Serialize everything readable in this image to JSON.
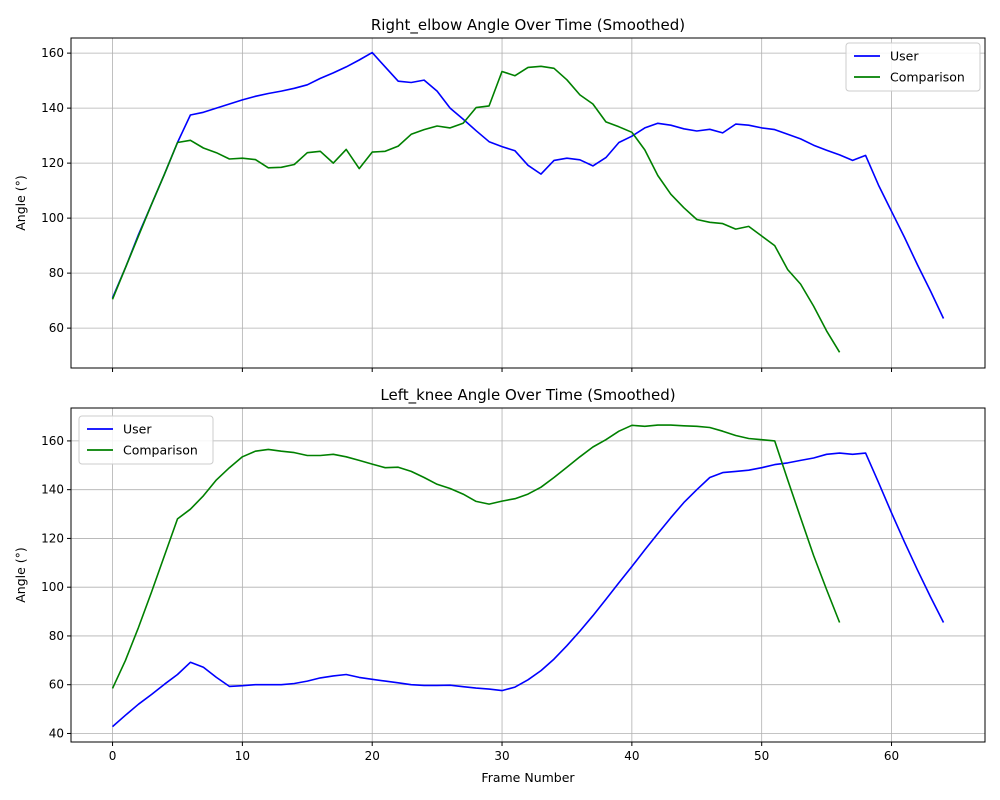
{
  "chart_data": [
    {
      "type": "line",
      "title": "Right_elbow Angle Over Time (Smoothed)",
      "xlabel": "",
      "ylabel": "Angle (°)",
      "xlim": [
        -3.2,
        67.2
      ],
      "ylim": [
        45.5,
        165.5
      ],
      "xticks": [
        0,
        10,
        20,
        30,
        40,
        50,
        60
      ],
      "yticks": [
        60,
        80,
        100,
        120,
        140,
        160
      ],
      "show_x_tick_labels": false,
      "grid": true,
      "legend": "upper right",
      "series": [
        {
          "name": "User",
          "color": "#0000ff",
          "x": [
            0,
            1,
            2,
            3,
            4,
            5,
            6,
            7,
            8,
            9,
            10,
            11,
            12,
            13,
            14,
            15,
            16,
            17,
            18,
            19,
            20,
            21,
            22,
            23,
            24,
            25,
            26,
            27,
            28,
            29,
            30,
            31,
            32,
            33,
            34,
            35,
            36,
            37,
            38,
            39,
            40,
            41,
            42,
            43,
            44,
            45,
            46,
            47,
            48,
            49,
            50,
            51,
            52,
            53,
            54,
            55,
            56,
            57,
            58,
            59,
            60,
            61,
            62,
            63,
            64
          ],
          "y": [
            71,
            82,
            94,
            105,
            116,
            127.5,
            137.5,
            138.5,
            140,
            141.5,
            143,
            144.3,
            145.3,
            146.2,
            147.2,
            148.5,
            150.8,
            152.8,
            155,
            157.5,
            160.2,
            155,
            149.8,
            149.3,
            150.2,
            146.2,
            140,
            136,
            131.8,
            127.8,
            126,
            124.5,
            119.2,
            116,
            121,
            121.8,
            121.2,
            119,
            122,
            127.5,
            129.8,
            132.8,
            134.5,
            133.8,
            132.5,
            131.7,
            132.3,
            131,
            134.2,
            133.8,
            132.8,
            132.2,
            130.5,
            128.8,
            126.5,
            124.7,
            123,
            121,
            122.8,
            112,
            102.5,
            93,
            83,
            73.5,
            63.5
          ]
        },
        {
          "name": "Comparison",
          "color": "#008000",
          "x": [
            0,
            1,
            2,
            3,
            4,
            5,
            6,
            7,
            8,
            9,
            10,
            11,
            12,
            13,
            14,
            15,
            16,
            17,
            18,
            19,
            20,
            21,
            22,
            23,
            24,
            25,
            26,
            27,
            28,
            29,
            30,
            31,
            32,
            33,
            34,
            35,
            36,
            37,
            38,
            39,
            40,
            41,
            42,
            43,
            44,
            45,
            46,
            47,
            48,
            49,
            50,
            51,
            52,
            53,
            54,
            55,
            56
          ],
          "y": [
            70.5,
            82,
            93.5,
            105,
            116,
            127.5,
            128.3,
            125.5,
            123.8,
            121.5,
            121.8,
            121.3,
            118.3,
            118.5,
            119.5,
            123.8,
            124.3,
            120,
            125,
            118,
            124,
            124.3,
            126.2,
            130.5,
            132.2,
            133.5,
            132.8,
            134.5,
            140.2,
            140.8,
            153.3,
            151.8,
            154.8,
            155.2,
            154.5,
            150.3,
            144.8,
            141.5,
            135,
            133.2,
            131.2,
            124.8,
            115.5,
            108.7,
            103.8,
            99.5,
            98.5,
            98,
            96,
            97,
            93.5,
            90,
            81.3,
            76,
            68,
            59,
            51.2
          ]
        }
      ]
    },
    {
      "type": "line",
      "title": "Left_knee Angle Over Time (Smoothed)",
      "xlabel": "Frame Number",
      "ylabel": "Angle (°)",
      "xlim": [
        -3.2,
        67.2
      ],
      "ylim": [
        36.5,
        173.5
      ],
      "xticks": [
        0,
        10,
        20,
        30,
        40,
        50,
        60
      ],
      "yticks": [
        40,
        60,
        80,
        100,
        120,
        140,
        160
      ],
      "show_x_tick_labels": true,
      "grid": true,
      "legend": "upper left",
      "series": [
        {
          "name": "User",
          "color": "#0000ff",
          "x": [
            0,
            1,
            2,
            3,
            4,
            5,
            6,
            7,
            8,
            9,
            10,
            11,
            12,
            13,
            14,
            15,
            16,
            17,
            18,
            19,
            20,
            21,
            22,
            23,
            24,
            25,
            26,
            27,
            28,
            29,
            30,
            31,
            32,
            33,
            34,
            35,
            36,
            37,
            38,
            39,
            40,
            41,
            42,
            43,
            44,
            45,
            46,
            47,
            48,
            49,
            50,
            51,
            52,
            53,
            54,
            55,
            56,
            57,
            58,
            59,
            60,
            61,
            62,
            63,
            64
          ],
          "y": [
            42.8,
            47.5,
            52,
            56,
            60.2,
            64.2,
            69.2,
            67.2,
            63,
            59.3,
            59.6,
            60,
            60,
            60,
            60.5,
            61.5,
            62.8,
            63.6,
            64.2,
            63,
            62.2,
            61.5,
            60.8,
            60,
            59.7,
            59.7,
            59.8,
            59.2,
            58.6,
            58.2,
            57.6,
            59,
            62,
            65.8,
            70.5,
            76,
            82,
            88.3,
            95,
            101.8,
            108.5,
            115.3,
            122,
            128.5,
            134.7,
            140,
            145,
            147,
            147.5,
            148,
            149,
            150.3,
            151,
            152,
            153,
            154.5,
            155,
            154.5,
            155,
            143,
            130.5,
            118.5,
            107,
            96,
            85.5
          ]
        },
        {
          "name": "Comparison",
          "color": "#008000",
          "x": [
            0,
            1,
            2,
            3,
            4,
            5,
            6,
            7,
            8,
            9,
            10,
            11,
            12,
            13,
            14,
            15,
            16,
            17,
            18,
            19,
            20,
            21,
            22,
            23,
            24,
            25,
            26,
            27,
            28,
            29,
            30,
            31,
            32,
            33,
            34,
            35,
            36,
            37,
            38,
            39,
            40,
            41,
            42,
            43,
            44,
            45,
            46,
            47,
            48,
            49,
            50,
            51,
            52,
            53,
            54,
            55,
            56
          ],
          "y": [
            58.5,
            70,
            83.5,
            98,
            113,
            128,
            132,
            137.5,
            144,
            149,
            153.5,
            155.8,
            156.5,
            155.8,
            155.2,
            154,
            154,
            154.5,
            153.5,
            152,
            150.5,
            149,
            149.2,
            147.5,
            145,
            142.2,
            140.5,
            138.2,
            135.2,
            134.1,
            135.3,
            136.3,
            138.2,
            141,
            145,
            149.2,
            153.5,
            157.5,
            160.5,
            164,
            166.4,
            166,
            166.5,
            166.5,
            166.2,
            166,
            165.5,
            164,
            162.2,
            161,
            160.5,
            160,
            144,
            128.5,
            113,
            99,
            85.5
          ]
        }
      ]
    }
  ]
}
